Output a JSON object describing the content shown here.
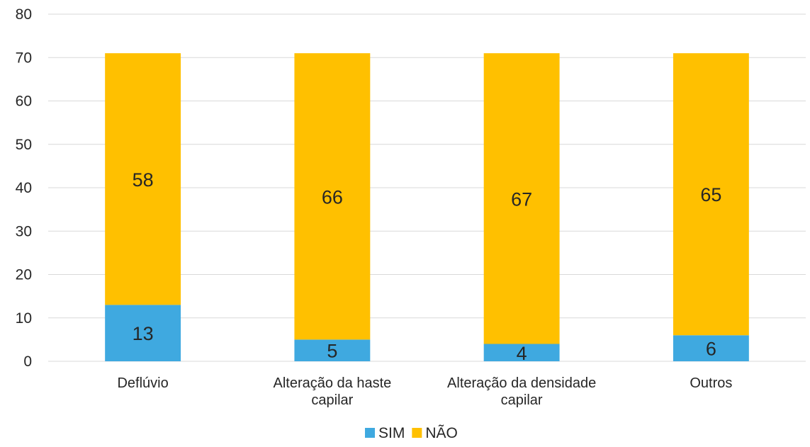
{
  "chart_data": {
    "type": "bar",
    "stacked": true,
    "categories": [
      [
        "Deflúvio"
      ],
      [
        "Alteração da haste",
        "capilar"
      ],
      [
        "Alteração da densidade",
        "capilar"
      ],
      [
        "Outros"
      ]
    ],
    "series": [
      {
        "name": "SIM",
        "values": [
          13,
          5,
          4,
          6
        ],
        "color": "#3fa9e0"
      },
      {
        "name": "NÃO",
        "values": [
          58,
          66,
          67,
          65
        ],
        "color": "#ffc000"
      }
    ],
    "ylim": [
      0,
      80
    ],
    "yticks": [
      0,
      10,
      20,
      30,
      40,
      50,
      60,
      70,
      80
    ],
    "grid": true,
    "legend_position": "bottom"
  }
}
